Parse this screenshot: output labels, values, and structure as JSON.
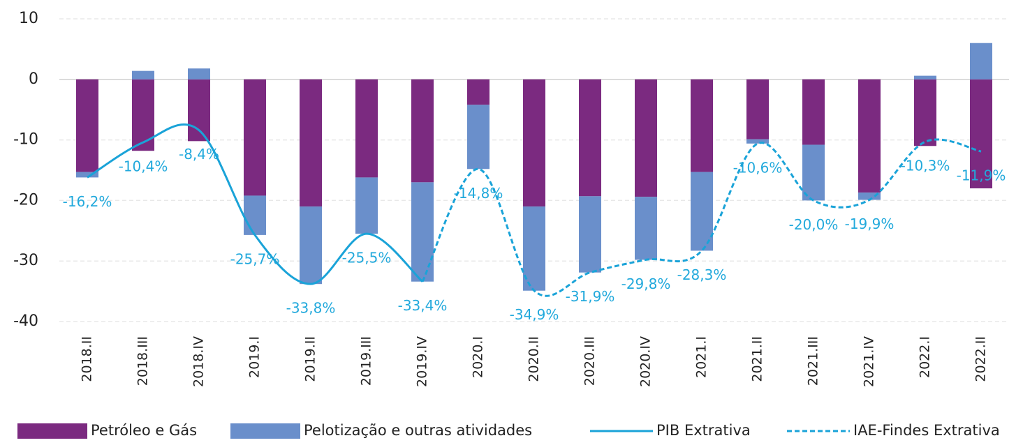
{
  "chart_data": {
    "type": "bar",
    "categories": [
      "2018.II",
      "2018.III",
      "2018.IV",
      "2019.I",
      "2019.II",
      "2019.III",
      "2019.IV",
      "2020.I",
      "2020.II",
      "2020.III",
      "2020.IV",
      "2021.I",
      "2021.II",
      "2021.III",
      "2021.IV",
      "2022.I",
      "2022.II"
    ],
    "series": [
      {
        "name": "Petróleo e Gás",
        "kind": "bar",
        "color": "#7b2a80",
        "values": [
          -15.3,
          -11.8,
          -10.2,
          -19.2,
          -21.0,
          -16.2,
          -17.0,
          -4.2,
          -21.0,
          -19.3,
          -19.4,
          -15.3,
          -9.9,
          -10.8,
          -18.7,
          -11.0,
          -18.0
        ]
      },
      {
        "name": "Pelotização e outras atividades",
        "kind": "bar",
        "color": "#6a8fcb",
        "values": [
          -0.9,
          1.4,
          1.8,
          -6.5,
          -12.8,
          -9.3,
          -16.4,
          -10.6,
          -13.9,
          -12.6,
          -10.4,
          -13.0,
          -0.7,
          -9.2,
          -1.2,
          0.6,
          6.0
        ]
      },
      {
        "name": "PIB Extrativa",
        "kind": "line",
        "dash": false,
        "color": "#1aa3d8",
        "values": [
          -16.2,
          -10.4,
          -8.4,
          -25.7,
          -33.8,
          -25.5,
          -33.4,
          null,
          null,
          null,
          null,
          null,
          null,
          null,
          null,
          null,
          null
        ],
        "value_labels": [
          "-16,2%",
          "-10,4%",
          "-8,4%",
          "-25,7%",
          "-33,8%",
          "-25,5%",
          "-33,4%",
          null,
          null,
          null,
          null,
          null,
          null,
          null,
          null,
          null,
          null
        ]
      },
      {
        "name": "IAE-Findes Extrativa",
        "kind": "line",
        "dash": true,
        "color": "#1aa3d8",
        "values": [
          null,
          null,
          null,
          null,
          null,
          null,
          -33.4,
          -14.8,
          -34.9,
          -31.9,
          -29.8,
          -28.3,
          -10.6,
          -20.0,
          -19.9,
          -10.3,
          -11.9
        ],
        "value_labels": [
          null,
          null,
          null,
          null,
          null,
          null,
          null,
          "-14,8%",
          "-34,9%",
          "-31,9%",
          "-29,8%",
          "-28,3%",
          "-10,6%",
          "-20,0%",
          "-19,9%",
          "-10,3%",
          "-11,9%"
        ]
      }
    ],
    "ylim": [
      -40,
      10
    ],
    "yticks": [
      10,
      0,
      -10,
      -20,
      -30,
      -40
    ],
    "grid": true,
    "legend": "bottom"
  }
}
